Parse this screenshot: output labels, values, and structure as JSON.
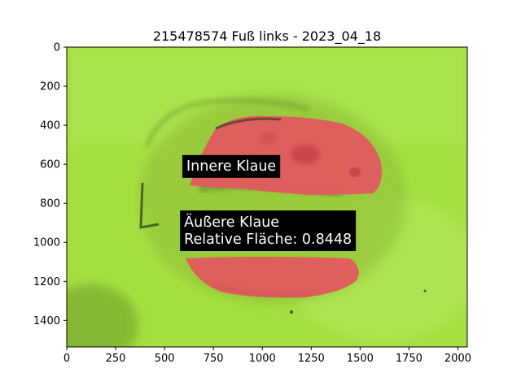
{
  "chart_data": {
    "type": "image",
    "title": "215478574 Fuß links - 2023_04_18",
    "xlim": [
      0,
      2048
    ],
    "ylim": [
      1536,
      0
    ],
    "y_inverted": true,
    "x_ticks": [
      0,
      250,
      500,
      750,
      1000,
      1250,
      1500,
      1750,
      2000
    ],
    "y_ticks": [
      0,
      200,
      400,
      600,
      800,
      1000,
      1200,
      1400
    ],
    "grid": false,
    "annotations": [
      {
        "id": "inner",
        "lines": [
          "Innere Klaue"
        ],
        "x": 612,
        "y": 632
      },
      {
        "id": "outer",
        "lines": [
          "Äußere Klaue",
          "Relative Fläche: 0.8448"
        ],
        "x": 600,
        "y": 920
      }
    ],
    "regions": [
      {
        "name": "Innere Klaue",
        "color": "#e15a5f"
      },
      {
        "name": "Äußere Klaue",
        "color": "#e15a5f"
      }
    ],
    "background_color": "#a6e23f",
    "annotation_box_color": "#000000"
  }
}
